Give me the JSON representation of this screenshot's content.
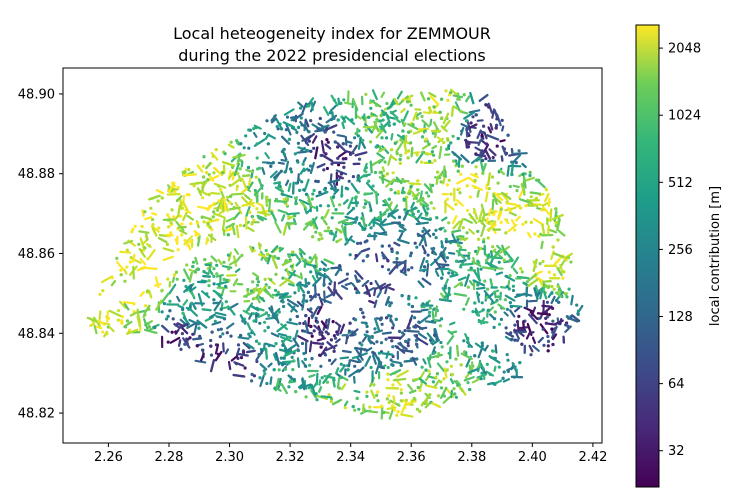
{
  "chart_data": {
    "type": "scatter",
    "title": [
      "Local heteogeneity index for ZEMMOUR",
      "during the 2022 presidencial elections"
    ],
    "xlabel": "",
    "ylabel": "",
    "xlim": [
      2.245,
      2.423
    ],
    "ylim": [
      48.8125,
      48.9065
    ],
    "x_ticks": [
      2.26,
      2.28,
      2.3,
      2.32,
      2.34,
      2.36,
      2.38,
      2.4,
      2.42
    ],
    "x_tick_labels": [
      "2.26",
      "2.28",
      "2.30",
      "2.32",
      "2.34",
      "2.36",
      "2.38",
      "2.40",
      "2.42"
    ],
    "y_ticks": [
      48.82,
      48.84,
      48.86,
      48.88,
      48.9
    ],
    "y_tick_labels": [
      "48.82",
      "48.84",
      "48.86",
      "48.88",
      "48.90"
    ],
    "colorbar": {
      "label": "local contribution [m]",
      "scale": "log2",
      "colormap": "viridis",
      "range": [
        22,
        2600
      ],
      "ticks": [
        32,
        64,
        128,
        256,
        512,
        1024,
        2048
      ],
      "tick_labels": [
        "32",
        "64",
        "128",
        "256",
        "512",
        "1024",
        "2048"
      ]
    },
    "grid": false,
    "approximate_regions": [
      {
        "x": 2.27,
        "y": 48.855,
        "value": 2300
      },
      {
        "x": 2.28,
        "y": 48.867,
        "value": 2200
      },
      {
        "x": 2.295,
        "y": 48.875,
        "value": 1900
      },
      {
        "x": 2.265,
        "y": 48.842,
        "value": 1500
      },
      {
        "x": 2.31,
        "y": 48.872,
        "value": 1200
      },
      {
        "x": 2.32,
        "y": 48.883,
        "value": 180
      },
      {
        "x": 2.335,
        "y": 48.885,
        "value": 40
      },
      {
        "x": 2.345,
        "y": 48.893,
        "value": 700
      },
      {
        "x": 2.355,
        "y": 48.88,
        "value": 1100
      },
      {
        "x": 2.37,
        "y": 48.895,
        "value": 1400
      },
      {
        "x": 2.385,
        "y": 48.89,
        "value": 40
      },
      {
        "x": 2.38,
        "y": 48.875,
        "value": 2100
      },
      {
        "x": 2.395,
        "y": 48.868,
        "value": 1800
      },
      {
        "x": 2.405,
        "y": 48.858,
        "value": 2000
      },
      {
        "x": 2.36,
        "y": 48.86,
        "value": 120
      },
      {
        "x": 2.345,
        "y": 48.855,
        "value": 60
      },
      {
        "x": 2.33,
        "y": 48.865,
        "value": 700
      },
      {
        "x": 2.31,
        "y": 48.855,
        "value": 900
      },
      {
        "x": 2.29,
        "y": 48.845,
        "value": 300
      },
      {
        "x": 2.285,
        "y": 48.838,
        "value": 40
      },
      {
        "x": 2.3,
        "y": 48.832,
        "value": 50
      },
      {
        "x": 2.315,
        "y": 48.84,
        "value": 250
      },
      {
        "x": 2.33,
        "y": 48.84,
        "value": 45
      },
      {
        "x": 2.345,
        "y": 48.835,
        "value": 160
      },
      {
        "x": 2.36,
        "y": 48.838,
        "value": 80
      },
      {
        "x": 2.37,
        "y": 48.83,
        "value": 1000
      },
      {
        "x": 2.355,
        "y": 48.825,
        "value": 1700
      },
      {
        "x": 2.375,
        "y": 48.845,
        "value": 600
      },
      {
        "x": 2.39,
        "y": 48.85,
        "value": 400
      },
      {
        "x": 2.4,
        "y": 48.842,
        "value": 40
      },
      {
        "x": 2.385,
        "y": 48.838,
        "value": 300
      },
      {
        "x": 2.32,
        "y": 48.828,
        "value": 350
      },
      {
        "x": 2.335,
        "y": 48.822,
        "value": 900
      }
    ]
  }
}
